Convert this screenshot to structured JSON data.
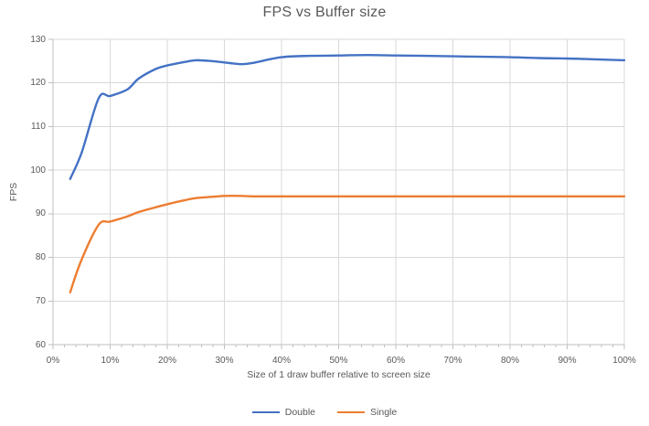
{
  "chart_data": {
    "type": "line",
    "title": "FPS vs Buffer size",
    "xlabel": "Size of 1 draw buffer relative to screen size",
    "ylabel": "FPS",
    "xlim": [
      0,
      100
    ],
    "ylim": [
      60,
      130
    ],
    "grid": true,
    "legend_position": "bottom",
    "line_style": "smooth",
    "x_ticks": [
      "0%",
      "10%",
      "20%",
      "30%",
      "40%",
      "50%",
      "60%",
      "70%",
      "80%",
      "90%",
      "100%"
    ],
    "x_tick_values": [
      0,
      10,
      20,
      30,
      40,
      50,
      60,
      70,
      80,
      90,
      100
    ],
    "x_minor_tick_step": 2,
    "y_ticks": [
      60,
      70,
      80,
      90,
      100,
      110,
      120,
      130
    ],
    "x": [
      3,
      5,
      8,
      10,
      13,
      15,
      18,
      20,
      23,
      25,
      28,
      30,
      33,
      35,
      40,
      45,
      50,
      55,
      60,
      65,
      70,
      75,
      80,
      85,
      90,
      95,
      100
    ],
    "series": [
      {
        "name": "Double",
        "color": "#4472C4",
        "values": [
          98,
          104,
          116.5,
          117,
          118.5,
          121,
          123.2,
          124,
          124.8,
          125.2,
          125,
          124.7,
          124.3,
          124.6,
          125.9,
          126.2,
          126.3,
          126.4,
          126.3,
          126.2,
          126.1,
          126.0,
          125.9,
          125.7,
          125.6,
          125.4,
          125.2
        ]
      },
      {
        "name": "Single",
        "color": "#ED7D31",
        "values": [
          72,
          79.5,
          87.5,
          88.2,
          89.4,
          90.4,
          91.5,
          92.2,
          93.1,
          93.6,
          93.9,
          94.1,
          94.1,
          94,
          94,
          94,
          94,
          94,
          94,
          94,
          94,
          94,
          94,
          94,
          94,
          94,
          94
        ]
      }
    ],
    "colors": {
      "gridline": "#D9D9D9",
      "axis_line": "#BFBFBF",
      "text": "#595959",
      "background": "#FFFFFF"
    }
  }
}
